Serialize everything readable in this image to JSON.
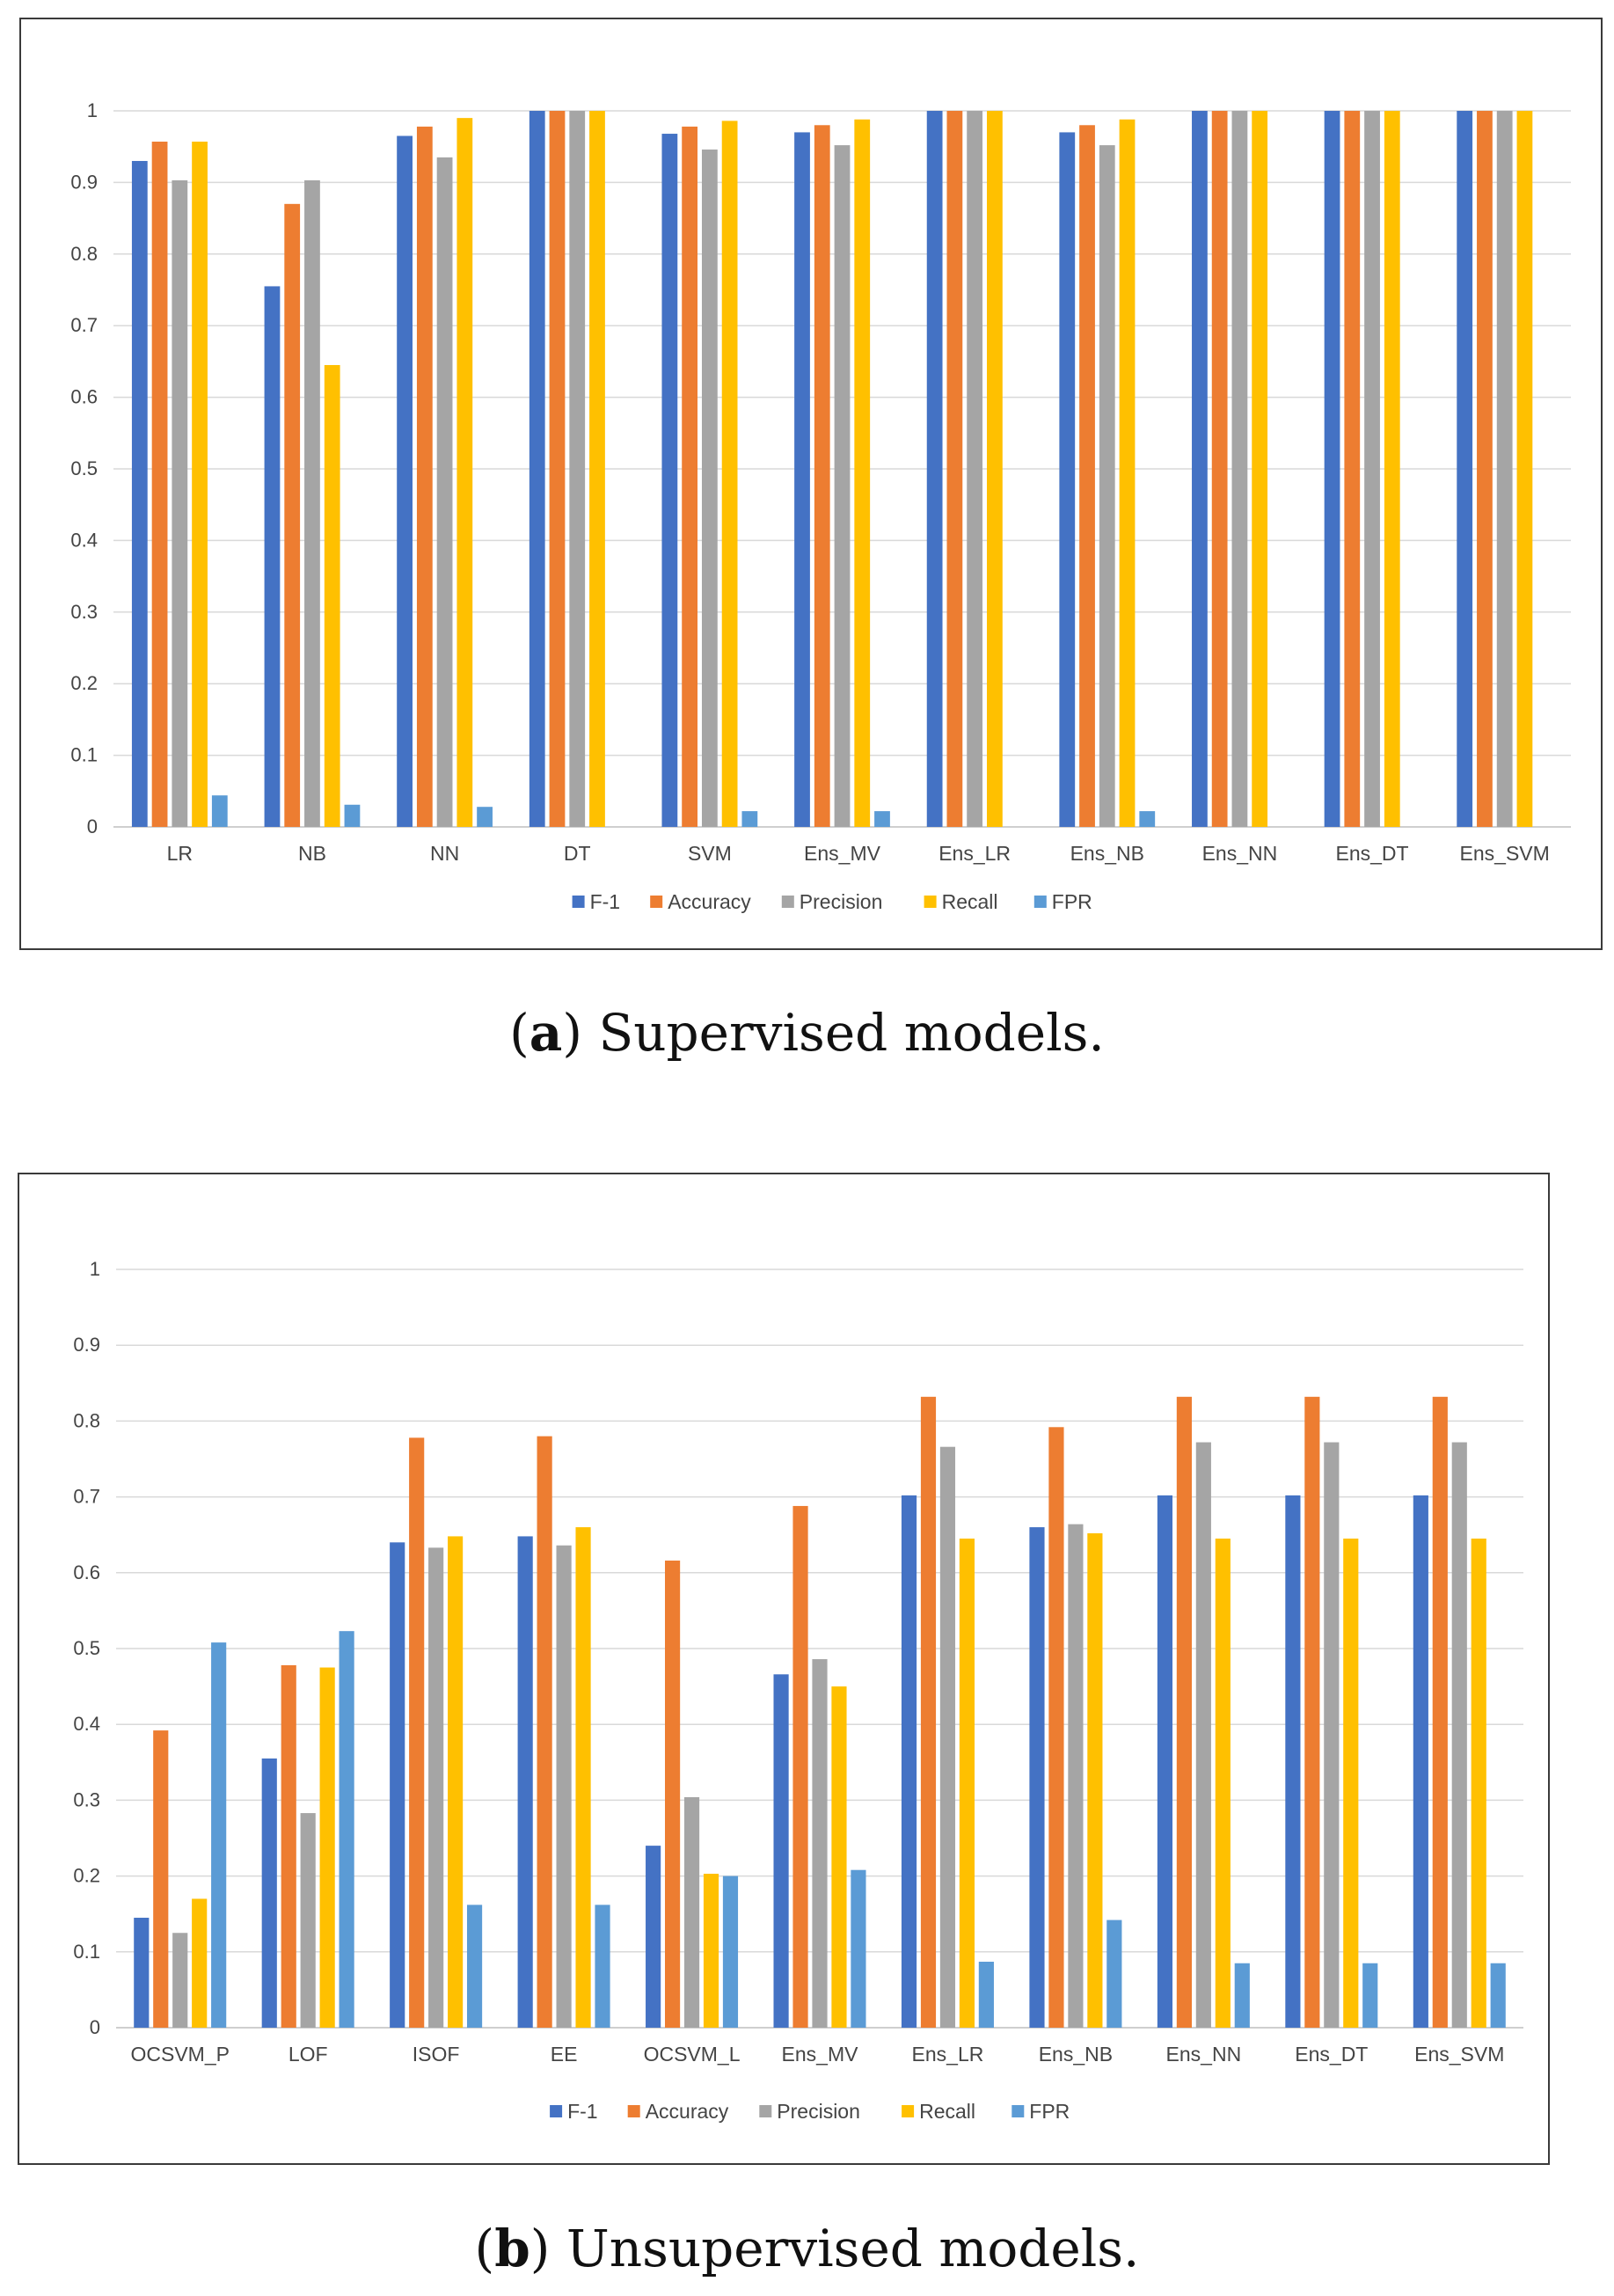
{
  "figures": [
    {
      "caption_tag": "a",
      "caption_text": "Supervised models.",
      "chart_data": {
        "type": "bar",
        "title": "",
        "xlabel": "",
        "ylabel": "",
        "ylim": [
          0,
          1
        ],
        "yticks": [
          "0",
          "0.1",
          "0.2",
          "0.3",
          "0.4",
          "0.5",
          "0.6",
          "0.7",
          "0.8",
          "0.9",
          "1"
        ],
        "grid": true,
        "legend_position": "bottom",
        "categories": [
          "LR",
          "NB",
          "NN",
          "DT",
          "SVM",
          "Ens_MV",
          "Ens_LR",
          "Ens_NB",
          "Ens_NN",
          "Ens_DT",
          "Ens_SVM"
        ],
        "series": [
          {
            "name": "F-1",
            "color": "#4472C4",
            "values": [
              0.93,
              0.755,
              0.965,
              1.0,
              0.968,
              0.97,
              1.0,
              0.97,
              1.0,
              1.0,
              1.0
            ]
          },
          {
            "name": "Accuracy",
            "color": "#ED7D31",
            "values": [
              0.957,
              0.87,
              0.978,
              1.0,
              0.978,
              0.98,
              1.0,
              0.98,
              1.0,
              1.0,
              1.0
            ]
          },
          {
            "name": "Precision",
            "color": "#A5A5A5",
            "values": [
              0.903,
              0.903,
              0.935,
              1.0,
              0.946,
              0.952,
              1.0,
              0.952,
              1.0,
              1.0,
              1.0
            ]
          },
          {
            "name": "Recall",
            "color": "#FFC000",
            "values": [
              0.957,
              0.645,
              0.99,
              1.0,
              0.986,
              0.988,
              1.0,
              0.988,
              1.0,
              1.0,
              1.0
            ]
          },
          {
            "name": "FPR",
            "color": "#5B9BD5",
            "values": [
              0.044,
              0.031,
              0.028,
              0.0,
              0.022,
              0.022,
              0.0,
              0.022,
              0.0,
              0.0,
              0.0
            ]
          }
        ]
      }
    },
    {
      "caption_tag": "b",
      "caption_text": "Unsupervised models.",
      "chart_data": {
        "type": "bar",
        "title": "",
        "xlabel": "",
        "ylabel": "",
        "ylim": [
          0,
          1
        ],
        "yticks": [
          "0",
          "0.1",
          "0.2",
          "0.3",
          "0.4",
          "0.5",
          "0.6",
          "0.7",
          "0.8",
          "0.9",
          "1"
        ],
        "grid": true,
        "legend_position": "bottom",
        "categories": [
          "OCSVM_P",
          "LOF",
          "ISOF",
          "EE",
          "OCSVM_L",
          "Ens_MV",
          "Ens_LR",
          "Ens_NB",
          "Ens_NN",
          "Ens_DT",
          "Ens_SVM"
        ],
        "series": [
          {
            "name": "F-1",
            "color": "#4472C4",
            "values": [
              0.145,
              0.355,
              0.64,
              0.648,
              0.24,
              0.466,
              0.702,
              0.66,
              0.702,
              0.702,
              0.702
            ]
          },
          {
            "name": "Accuracy",
            "color": "#ED7D31",
            "values": [
              0.392,
              0.478,
              0.778,
              0.78,
              0.616,
              0.688,
              0.832,
              0.792,
              0.832,
              0.832,
              0.832
            ]
          },
          {
            "name": "Precision",
            "color": "#A5A5A5",
            "values": [
              0.125,
              0.283,
              0.633,
              0.636,
              0.304,
              0.486,
              0.766,
              0.664,
              0.772,
              0.772,
              0.772
            ]
          },
          {
            "name": "Recall",
            "color": "#FFC000",
            "values": [
              0.17,
              0.475,
              0.648,
              0.66,
              0.203,
              0.45,
              0.645,
              0.652,
              0.645,
              0.645,
              0.645
            ]
          },
          {
            "name": "FPR",
            "color": "#5B9BD5",
            "values": [
              0.508,
              0.523,
              0.162,
              0.162,
              0.2,
              0.208,
              0.087,
              0.142,
              0.085,
              0.085,
              0.085
            ]
          }
        ]
      }
    }
  ]
}
